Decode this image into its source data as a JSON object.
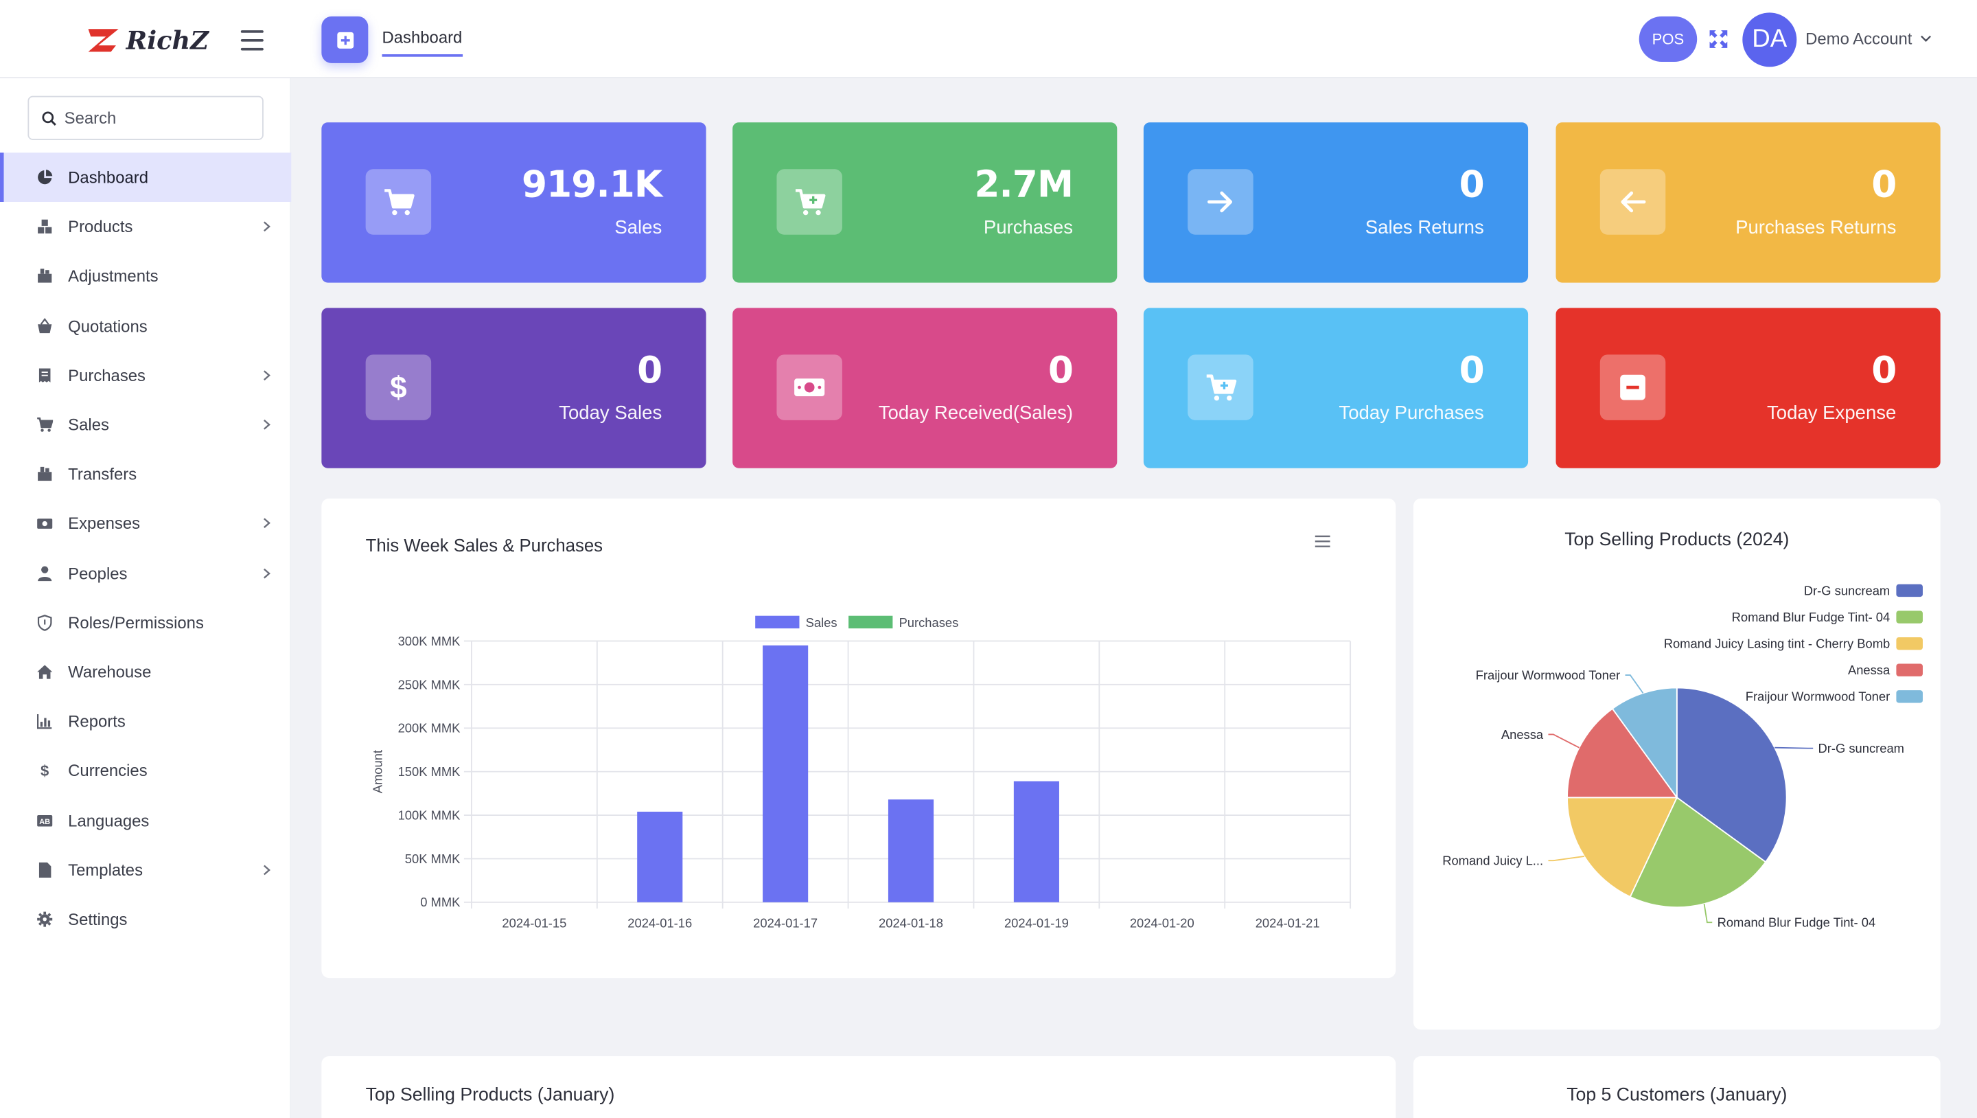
{
  "header": {
    "logo_text": "RichZ",
    "tab_label": "Dashboard",
    "pos_label": "POS",
    "avatar_initials": "DA",
    "account_name": "Demo Account"
  },
  "search": {
    "placeholder": "Search"
  },
  "sidebar": {
    "items": [
      {
        "label": "Dashboard",
        "icon": "pie-chart-icon",
        "has_submenu": false,
        "active": true
      },
      {
        "label": "Products",
        "icon": "boxes-icon",
        "has_submenu": true
      },
      {
        "label": "Adjustments",
        "icon": "adjust-icon",
        "has_submenu": false
      },
      {
        "label": "Quotations",
        "icon": "basket-icon",
        "has_submenu": false
      },
      {
        "label": "Purchases",
        "icon": "receipt-icon",
        "has_submenu": true
      },
      {
        "label": "Sales",
        "icon": "cart-icon",
        "has_submenu": true
      },
      {
        "label": "Transfers",
        "icon": "transfer-icon",
        "has_submenu": false
      },
      {
        "label": "Expenses",
        "icon": "money-icon",
        "has_submenu": true
      },
      {
        "label": "Peoples",
        "icon": "user-icon",
        "has_submenu": true
      },
      {
        "label": "Roles/Permissions",
        "icon": "shield-icon",
        "has_submenu": false
      },
      {
        "label": "Warehouse",
        "icon": "home-icon",
        "has_submenu": false
      },
      {
        "label": "Reports",
        "icon": "bar-chart-icon",
        "has_submenu": false
      },
      {
        "label": "Currencies",
        "icon": "dollar-icon",
        "has_submenu": false
      },
      {
        "label": "Languages",
        "icon": "language-icon",
        "has_submenu": false
      },
      {
        "label": "Templates",
        "icon": "file-icon",
        "has_submenu": true
      },
      {
        "label": "Settings",
        "icon": "gear-icon",
        "has_submenu": false
      }
    ]
  },
  "stats": [
    {
      "value": "919.1K",
      "label": "Sales",
      "color": "#6b72f2",
      "icon": "cart-icon"
    },
    {
      "value": "2.7M",
      "label": "Purchases",
      "color": "#5cbd74",
      "icon": "cart-plus-icon"
    },
    {
      "value": "0",
      "label": "Sales Returns",
      "color": "#3f96f0",
      "icon": "arrow-right-icon"
    },
    {
      "value": "0",
      "label": "Purchases Returns",
      "color": "#f2b845",
      "icon": "arrow-left-icon"
    },
    {
      "value": "0",
      "label": "Today Sales",
      "color": "#6a46b8",
      "icon": "dollar-icon"
    },
    {
      "value": "0",
      "label": "Today Received(Sales)",
      "color": "#d84a8a",
      "icon": "cash-icon"
    },
    {
      "value": "0",
      "label": "Today Purchases",
      "color": "#59c1f5",
      "icon": "cart-plus-icon"
    },
    {
      "value": "0",
      "label": "Today Expense",
      "color": "#e5332a",
      "icon": "minus-box-icon"
    }
  ],
  "panels": {
    "weekly_title": "This Week Sales & Purchases",
    "top_products_title": "Top Selling Products (2024)",
    "top_products_month_title": "Top Selling Products (January)",
    "top_customers_title": "Top 5 Customers (January)"
  },
  "chart_data": [
    {
      "type": "bar",
      "title": "This Week Sales & Purchases",
      "categories": [
        "2024-01-15",
        "2024-01-16",
        "2024-01-17",
        "2024-01-18",
        "2024-01-19",
        "2024-01-20",
        "2024-01-21"
      ],
      "series": [
        {
          "name": "Sales",
          "color": "#6b72f2",
          "values": [
            0,
            104000,
            295000,
            118000,
            139000,
            0,
            0
          ]
        },
        {
          "name": "Purchases",
          "color": "#5cbd74",
          "values": [
            0,
            0,
            0,
            0,
            0,
            0,
            0
          ]
        }
      ],
      "ylabel": "Amount",
      "yticks": [
        "0 MMK",
        "50K MMK",
        "100K MMK",
        "150K MMK",
        "200K MMK",
        "250K MMK",
        "300K MMK"
      ],
      "ylim": [
        0,
        300000
      ],
      "grid": true,
      "legend": "top"
    },
    {
      "type": "pie",
      "title": "Top Selling Products (2024)",
      "legend": "top-right",
      "slices": [
        {
          "name": "Dr-G suncream",
          "label": "Dr-G suncream",
          "color": "#5b6fc1",
          "value": 35
        },
        {
          "name": "Romand Blur Fudge Tint- 04",
          "label": "Romand Blur Fudge Tint- 04",
          "color": "#98c96b",
          "value": 22
        },
        {
          "name": "Romand Juicy Lasing tint - Cherry Bomb",
          "label": "Romand Juicy L...",
          "color": "#f2c964",
          "value": 18
        },
        {
          "name": "Anessa",
          "label": "Anessa",
          "color": "#e06b6b",
          "value": 15
        },
        {
          "name": "Fraijour Wormwood Toner",
          "label": "Fraijour Wormwood Toner",
          "color": "#7fbadc",
          "value": 10
        }
      ]
    }
  ]
}
